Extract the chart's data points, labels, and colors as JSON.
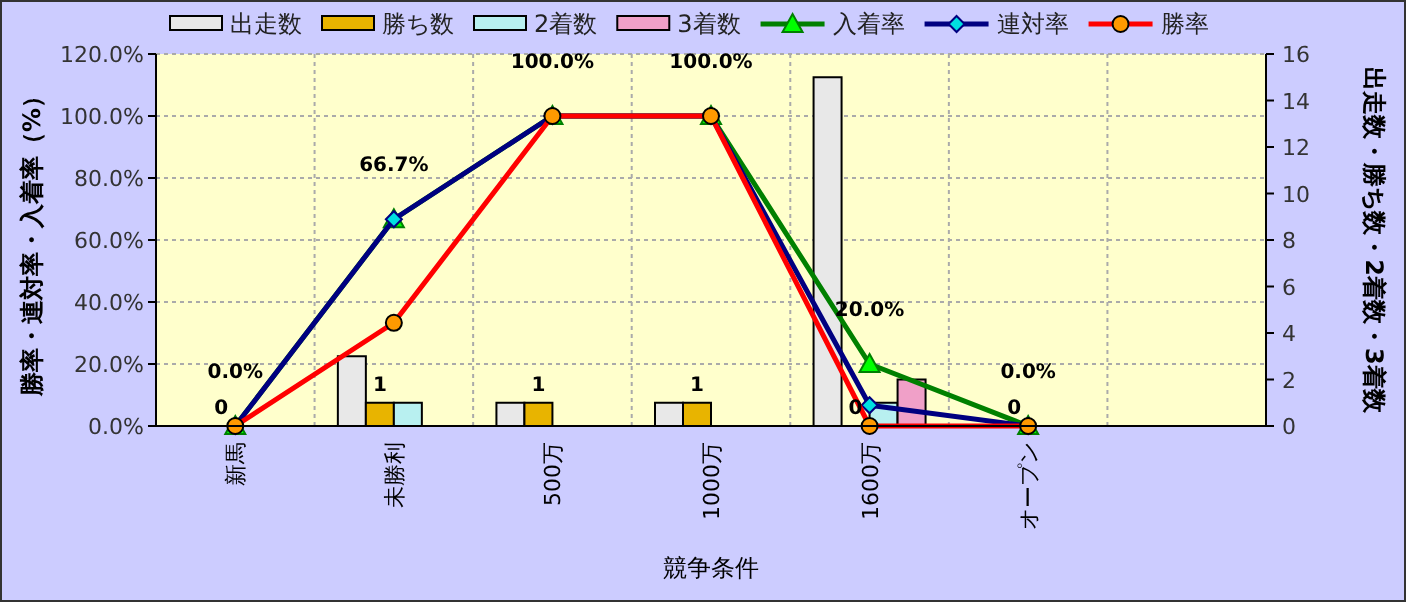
{
  "chart_data": {
    "type": "bar",
    "xlabel": "競争条件",
    "ylabel": "勝率・連対率・入着率（%）",
    "y2label": "出走数・勝ち数・2着数・3着数",
    "categories": [
      "新馬",
      "未勝利",
      "500万",
      "1000万",
      "1600万",
      "オープン",
      null
    ],
    "ylim": [
      0,
      120
    ],
    "yticks": [
      {
        "value": 0,
        "label": "0.0%"
      },
      {
        "value": 20,
        "label": "20.0%"
      },
      {
        "value": 40,
        "label": "40.0%"
      },
      {
        "value": 60,
        "label": "60.0%"
      },
      {
        "value": 80,
        "label": "80.0%"
      },
      {
        "value": 100,
        "label": "100.0%"
      },
      {
        "value": 120,
        "label": "120.0%"
      }
    ],
    "y2lim": [
      0,
      16
    ],
    "y2ticks": [
      0,
      2,
      4,
      6,
      8,
      10,
      12,
      14,
      16
    ],
    "grid": true,
    "legend": "top",
    "series": [
      {
        "name": "出走数",
        "axis": "y2",
        "color": "#e8e8e8",
        "values": [
          0,
          3,
          1,
          1,
          15,
          0,
          null
        ]
      },
      {
        "name": "勝ち数",
        "axis": "y2",
        "color": "#e8b400",
        "values": [
          0,
          1,
          1,
          1,
          0,
          0,
          null
        ],
        "value_labels": [
          "0",
          "1",
          "1",
          "1",
          "0",
          "0",
          null
        ]
      },
      {
        "name": "2着数",
        "axis": "y2",
        "color": "#b8f0f0",
        "values": [
          0,
          1,
          0,
          0,
          1,
          0,
          null
        ]
      },
      {
        "name": "3着数",
        "axis": "y2",
        "color": "#f0a0c8",
        "values": [
          0,
          0,
          0,
          0,
          2,
          0,
          null
        ]
      },
      {
        "name": "入着率",
        "type": "line",
        "color": "#008000",
        "marker": "triangle",
        "values": [
          0,
          66.7,
          100,
          100,
          20,
          0,
          null
        ],
        "value_labels": [
          "0.0%",
          "66.7%",
          "100.0%",
          "100.0%",
          "20.0%",
          "0.0%",
          null
        ]
      },
      {
        "name": "連対率",
        "type": "line",
        "color": "#000080",
        "marker": "diamond",
        "values": [
          0,
          66.7,
          100,
          100,
          6.7,
          0,
          null
        ]
      },
      {
        "name": "勝率",
        "type": "line",
        "color": "#ff0000",
        "marker": "circle",
        "values": [
          0,
          33.3,
          100,
          100,
          0,
          0,
          null
        ]
      }
    ]
  }
}
